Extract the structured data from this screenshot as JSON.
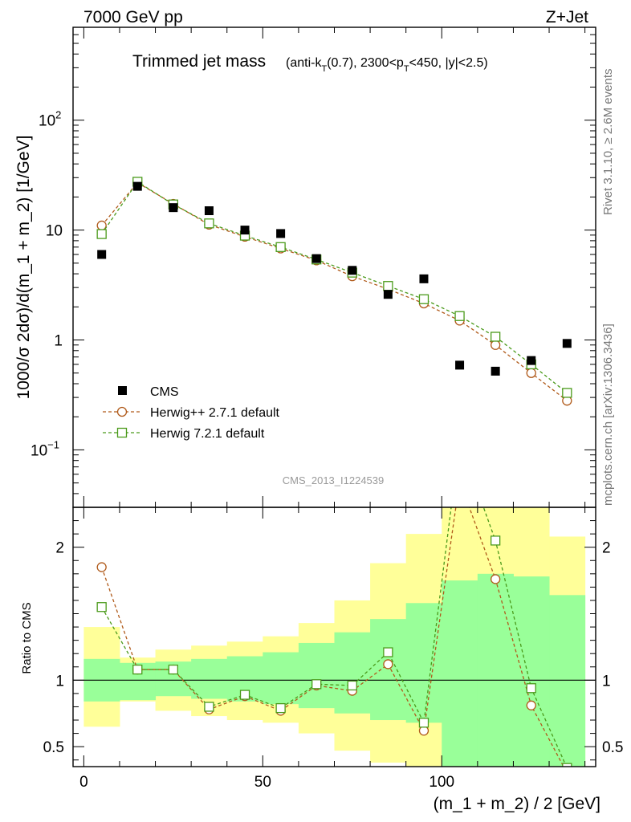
{
  "header": {
    "energy_label": "7000 GeV pp",
    "process_label": "Z+Jet",
    "title_main": "Trimmed jet mass",
    "title_detail_pre": "(anti-k",
    "title_detail_sub": "T",
    "title_detail_mid": "(0.7), 2300<p",
    "title_detail_sub2": "T",
    "title_detail_post": "<450, |y|<2.5)",
    "watermark": "CMS_2013_I1224539",
    "side_label_top": "Rivet 3.1.10, ≥ 2.6M events",
    "side_label_bottom": "mcplots.cern.ch [arXiv:1306.3436]"
  },
  "chart_data": [
    {
      "type": "scatter",
      "title": "Trimmed jet mass",
      "xlabel": "(m_1 + m_2) / 2 [GeV]",
      "ylabel": "1000/σ 2dσ)/d(m_1 + m_2) [1/GeV]",
      "yscale": "log",
      "xlim": [
        -3,
        143
      ],
      "ylim": [
        0.03,
        700
      ],
      "y_ticks": [
        {
          "value": 0.1,
          "label": "10",
          "sup": "−1"
        },
        {
          "value": 1,
          "label": "1",
          "sup": ""
        },
        {
          "value": 10,
          "label": "10",
          "sup": ""
        },
        {
          "value": 100,
          "label": "10",
          "sup": "2"
        }
      ],
      "x": [
        5,
        15,
        25,
        35,
        45,
        55,
        65,
        75,
        85,
        95,
        105,
        115,
        125,
        135
      ],
      "series": [
        {
          "name": "CMS",
          "color": "#000000",
          "marker": "filled-square",
          "values": [
            6.0,
            25.0,
            16.0,
            15.0,
            10.0,
            9.3,
            5.5,
            4.3,
            2.6,
            3.6,
            0.59,
            0.52,
            0.65,
            0.93
          ]
        },
        {
          "name": "Herwig++ 2.7.1 default",
          "color": "#b05a1a",
          "marker": "open-circle",
          "values": [
            11.0,
            27.0,
            17.3,
            11.2,
            8.7,
            6.8,
            5.3,
            3.8,
            2.9,
            2.15,
            1.5,
            0.9,
            0.5,
            0.28
          ]
        },
        {
          "name": "Herwig 7.2.1 default",
          "color": "#4a9a1a",
          "marker": "open-square",
          "values": [
            9.2,
            27.5,
            17.1,
            11.5,
            8.9,
            7.0,
            5.4,
            4.1,
            3.1,
            2.35,
            1.65,
            1.07,
            0.6,
            0.33
          ]
        }
      ],
      "legend": "middle-left"
    },
    {
      "type": "line",
      "ylabel": "Ratio to CMS",
      "xlabel": "(m_1 + m_2) / 2 [GeV]",
      "xlim": [
        -3,
        143
      ],
      "ylim": [
        0.35,
        2.3
      ],
      "x_ticks": [
        0,
        50,
        100
      ],
      "y_ticks": [
        0.5,
        1,
        2
      ],
      "reference_line": 1,
      "bin_edges": [
        0,
        10,
        20,
        30,
        40,
        50,
        60,
        70,
        80,
        90,
        100,
        110,
        120,
        130,
        140
      ],
      "band_inner": {
        "color": "#99ff99",
        "low": [
          0.84,
          0.85,
          0.88,
          0.86,
          0.84,
          0.82,
          0.79,
          0.75,
          0.7,
          0.68,
          0.0,
          0.0,
          0.0,
          0.0
        ],
        "high": [
          1.16,
          1.13,
          1.14,
          1.16,
          1.18,
          1.21,
          1.28,
          1.36,
          1.46,
          1.58,
          1.75,
          1.8,
          1.78,
          1.64
        ]
      },
      "band_outer": {
        "color": "#ffff99",
        "low": [
          0.65,
          0.84,
          0.77,
          0.73,
          0.7,
          0.68,
          0.6,
          0.47,
          0.38,
          0.3,
          0.0,
          0.0,
          0.0,
          0.0
        ],
        "high": [
          1.4,
          1.17,
          1.23,
          1.26,
          1.29,
          1.33,
          1.43,
          1.6,
          1.88,
          2.1,
          2.6,
          2.45,
          2.35,
          2.08
        ]
      },
      "x": [
        5,
        15,
        25,
        35,
        45,
        55,
        65,
        75,
        85,
        95,
        105,
        115,
        125,
        135
      ],
      "series": [
        {
          "name": "Herwig++ 2.7.1 default",
          "color": "#b05a1a",
          "marker": "open-circle",
          "values": [
            1.85,
            1.08,
            1.08,
            0.78,
            0.88,
            0.77,
            0.96,
            0.92,
            1.12,
            0.62,
            2.5,
            1.76,
            0.81,
            0.3
          ]
        },
        {
          "name": "Herwig 7.2.1 default",
          "color": "#4a9a1a",
          "marker": "open-square",
          "values": [
            1.55,
            1.08,
            1.08,
            0.8,
            0.89,
            0.79,
            0.97,
            0.96,
            1.21,
            0.68,
            2.8,
            2.05,
            0.94,
            0.34
          ]
        }
      ]
    }
  ]
}
